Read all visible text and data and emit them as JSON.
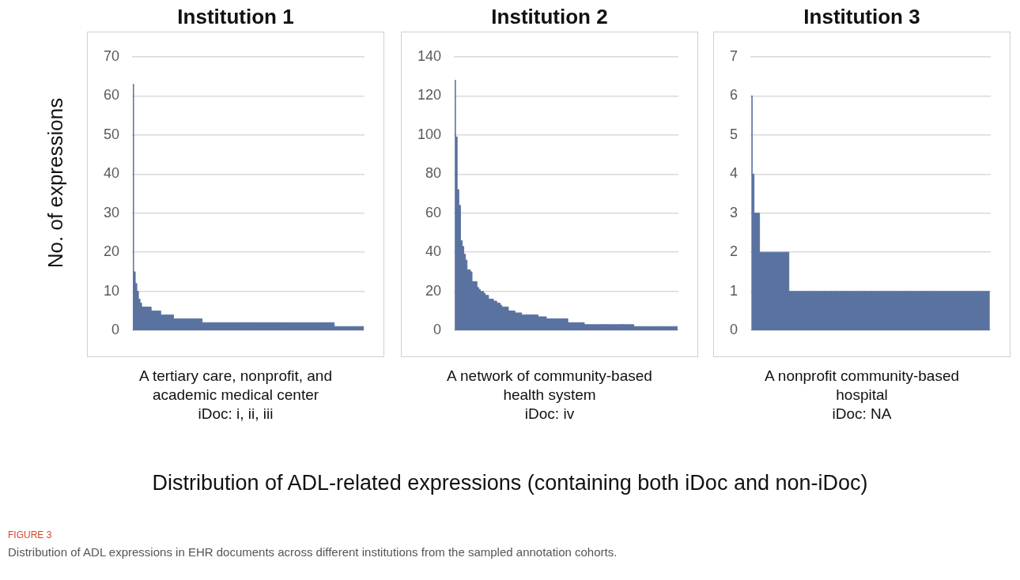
{
  "chart_data": [
    {
      "type": "area",
      "title": "Institution 1",
      "subtitle": "A tertiary care, nonprofit, and academic medical center\niDoc: i, ii, iii",
      "ylabel": "No. of expressions",
      "xlabel": "Distribution of ADL-related expressions (containing both iDoc and non-iDoc)",
      "annotations": [
        "FIGURE 3",
        "Distribution of ADL expressions in EHR documents across different institutions from the sampled annotation cohorts."
      ],
      "color": "#5a72a0",
      "ylim": [
        0,
        70
      ],
      "yticks": [
        0,
        10,
        20,
        30,
        40,
        50,
        60,
        70
      ],
      "grid": "y",
      "tick_labels": "y",
      "categories": [
        null,
        null,
        null,
        null,
        null,
        null,
        null,
        null,
        null,
        null,
        null,
        null,
        null,
        null,
        null,
        null,
        null,
        null,
        null,
        null,
        null,
        null,
        null,
        null,
        null,
        null,
        null,
        null,
        null,
        null,
        null,
        null,
        null,
        null,
        null,
        null,
        null,
        null,
        null,
        null,
        null,
        null,
        null,
        null,
        null,
        null,
        null,
        null,
        null,
        null,
        null,
        null,
        null,
        null,
        null,
        null,
        null,
        null,
        null,
        null,
        null,
        null,
        null,
        null,
        null,
        null,
        null,
        null,
        null,
        null,
        null,
        null,
        null,
        null,
        null,
        null,
        null,
        null,
        null,
        null,
        null,
        null,
        null,
        null,
        null,
        null,
        null,
        null,
        null,
        null,
        null,
        null,
        null,
        null,
        null,
        null,
        null,
        null,
        null,
        null,
        null,
        null,
        null,
        null,
        null,
        null,
        null,
        null,
        null,
        null,
        null,
        null,
        null,
        null,
        null,
        null,
        null,
        null,
        null,
        null,
        null,
        null,
        null,
        null,
        null,
        null,
        null,
        null,
        null,
        null,
        null,
        null,
        null,
        null,
        null,
        null,
        null,
        null,
        null,
        null,
        null,
        null,
        null,
        null,
        null,
        null
      ],
      "values": [
        63,
        15,
        12,
        10,
        8,
        7,
        6,
        6,
        6,
        6,
        6,
        6,
        5,
        5,
        5,
        5,
        5,
        5,
        4,
        4,
        4,
        4,
        4,
        4,
        4,
        4,
        3,
        3,
        3,
        3,
        3,
        3,
        3,
        3,
        3,
        3,
        3,
        3,
        3,
        3,
        3,
        3,
        3,
        3,
        2,
        2,
        2,
        2,
        2,
        2,
        2,
        2,
        2,
        2,
        2,
        2,
        2,
        2,
        2,
        2,
        2,
        2,
        2,
        2,
        2,
        2,
        2,
        2,
        2,
        2,
        2,
        2,
        2,
        2,
        2,
        2,
        2,
        2,
        2,
        2,
        2,
        2,
        2,
        2,
        2,
        2,
        2,
        2,
        2,
        2,
        2,
        2,
        2,
        2,
        2,
        2,
        2,
        2,
        2,
        2,
        2,
        2,
        2,
        2,
        2,
        2,
        2,
        2,
        2,
        2,
        2,
        2,
        2,
        2,
        2,
        2,
        2,
        2,
        2,
        2,
        2,
        2,
        2,
        2,
        2,
        2,
        2,
        1,
        1,
        1,
        1,
        1,
        1,
        1,
        1,
        1,
        1,
        1,
        1,
        1,
        1,
        1,
        1,
        1,
        1,
        1
      ]
    },
    {
      "type": "area",
      "title": "Institution 2",
      "subtitle": "A network of community-based health system\niDoc: iv",
      "color": "#5a72a0",
      "ylim": [
        0,
        140
      ],
      "yticks": [
        0,
        20,
        40,
        60,
        80,
        100,
        120,
        140
      ],
      "grid": "y",
      "tick_labels": "y",
      "categories": [
        null,
        null,
        null,
        null,
        null,
        null,
        null,
        null,
        null,
        null,
        null,
        null,
        null,
        null,
        null,
        null,
        null,
        null,
        null,
        null,
        null,
        null,
        null,
        null,
        null,
        null,
        null,
        null,
        null,
        null,
        null,
        null,
        null,
        null,
        null,
        null,
        null,
        null,
        null,
        null,
        null,
        null,
        null,
        null,
        null,
        null,
        null,
        null,
        null,
        null,
        null,
        null,
        null,
        null,
        null,
        null,
        null,
        null,
        null,
        null,
        null,
        null,
        null,
        null,
        null,
        null,
        null,
        null,
        null,
        null,
        null,
        null,
        null,
        null,
        null,
        null,
        null,
        null,
        null,
        null,
        null,
        null,
        null,
        null,
        null,
        null,
        null,
        null,
        null,
        null,
        null,
        null,
        null,
        null,
        null,
        null,
        null,
        null,
        null,
        null,
        null,
        null,
        null,
        null,
        null,
        null,
        null,
        null,
        null,
        null,
        null,
        null,
        null,
        null,
        null,
        null,
        null,
        null,
        null,
        null,
        null,
        null,
        null,
        null,
        null,
        null,
        null,
        null,
        null,
        null,
        null,
        null,
        null,
        null,
        null,
        null
      ],
      "values": [
        128,
        99,
        72,
        64,
        46,
        43,
        39,
        36,
        31,
        31,
        30,
        25,
        25,
        25,
        22,
        21,
        20,
        20,
        19,
        18,
        18,
        16,
        16,
        16,
        15,
        15,
        14,
        14,
        13,
        12,
        12,
        12,
        12,
        10,
        10,
        10,
        10,
        9,
        9,
        9,
        9,
        8,
        8,
        8,
        8,
        8,
        8,
        8,
        8,
        8,
        8,
        7,
        7,
        7,
        7,
        7,
        6,
        6,
        6,
        6,
        6,
        6,
        6,
        6,
        6,
        6,
        6,
        6,
        6,
        4,
        4,
        4,
        4,
        4,
        4,
        4,
        4,
        4,
        4,
        3,
        3,
        3,
        3,
        3,
        3,
        3,
        3,
        3,
        3,
        3,
        3,
        3,
        3,
        3,
        3,
        3,
        3,
        3,
        3,
        3,
        3,
        3,
        3,
        3,
        3,
        3,
        3,
        3,
        3,
        2,
        2,
        2,
        2,
        2,
        2,
        2,
        2,
        2,
        2,
        2,
        2,
        2,
        2,
        2,
        2,
        2,
        2,
        2,
        2,
        2,
        2,
        2,
        2,
        2,
        2,
        2
      ]
    },
    {
      "type": "area",
      "title": "Institution 3",
      "subtitle": "A nonprofit community-based hospital\niDoc: NA",
      "color": "#5a72a0",
      "ylim": [
        0,
        7
      ],
      "yticks": [
        0,
        1,
        2,
        3,
        4,
        5,
        6,
        7
      ],
      "grid": "y",
      "tick_labels": "y",
      "categories": [
        null,
        null,
        null,
        null,
        null,
        null,
        null,
        null,
        null,
        null,
        null,
        null,
        null,
        null,
        null,
        null,
        null,
        null,
        null,
        null,
        null,
        null,
        null,
        null,
        null,
        null,
        null,
        null,
        null,
        null,
        null,
        null,
        null,
        null,
        null,
        null,
        null,
        null,
        null,
        null,
        null,
        null,
        null,
        null,
        null,
        null,
        null,
        null,
        null,
        null,
        null,
        null,
        null,
        null,
        null,
        null,
        null,
        null,
        null,
        null,
        null,
        null,
        null,
        null,
        null,
        null,
        null,
        null,
        null,
        null,
        null,
        null,
        null,
        null,
        null,
        null,
        null,
        null,
        null,
        null,
        null,
        null,
        null,
        null,
        null,
        null,
        null,
        null,
        null,
        null,
        null,
        null,
        null,
        null,
        null,
        null,
        null,
        null,
        null,
        null,
        null,
        null,
        null,
        null,
        null,
        null,
        null,
        null,
        null,
        null,
        null,
        null,
        null,
        null,
        null,
        null,
        null,
        null,
        null,
        null,
        null,
        null,
        null,
        null,
        null,
        null,
        null,
        null,
        null,
        null,
        null
      ],
      "values": [
        6,
        4,
        3,
        3,
        3,
        2,
        2,
        2,
        2,
        2,
        2,
        2,
        2,
        2,
        2,
        2,
        2,
        2,
        2,
        2,
        2,
        1,
        1,
        1,
        1,
        1,
        1,
        1,
        1,
        1,
        1,
        1,
        1,
        1,
        1,
        1,
        1,
        1,
        1,
        1,
        1,
        1,
        1,
        1,
        1,
        1,
        1,
        1,
        1,
        1,
        1,
        1,
        1,
        1,
        1,
        1,
        1,
        1,
        1,
        1,
        1,
        1,
        1,
        1,
        1,
        1,
        1,
        1,
        1,
        1,
        1,
        1,
        1,
        1,
        1,
        1,
        1,
        1,
        1,
        1,
        1,
        1,
        1,
        1,
        1,
        1,
        1,
        1,
        1,
        1,
        1,
        1,
        1,
        1,
        1,
        1,
        1,
        1,
        1,
        1,
        1,
        1,
        1,
        1,
        1,
        1,
        1,
        1,
        1,
        1,
        1,
        1,
        1,
        1,
        1,
        1,
        1,
        1,
        1,
        1,
        1,
        1,
        1,
        1,
        1,
        1,
        1,
        1,
        1,
        1,
        1
      ]
    }
  ]
}
